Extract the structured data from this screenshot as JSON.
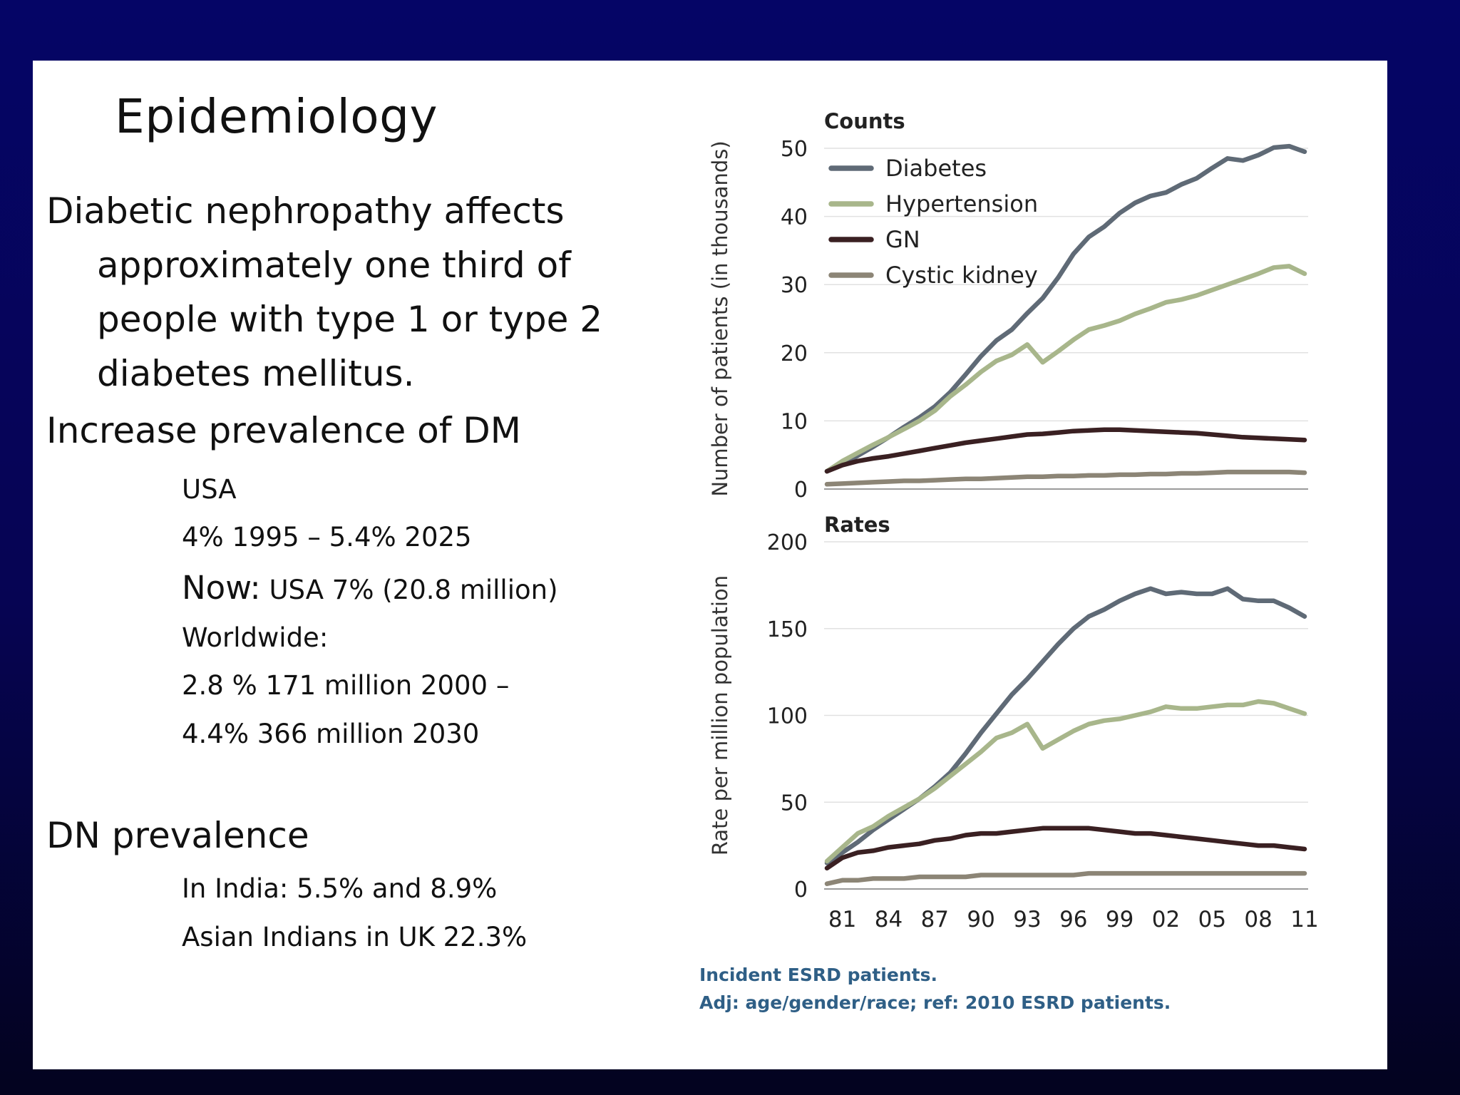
{
  "slide": {
    "title": "Epidemiology",
    "para_line1": "Diabetic nephropathy affects",
    "para_line2": "approximately one third of",
    "para_line3": "people with type 1 or type 2",
    "para_line4": "diabetes mellitus.",
    "heading_dm": "Increase prevalence of DM",
    "usa": "USA",
    "usa_trend": "4% 1995 – 5.4% 2025",
    "now_word": "Now:",
    "now_rest": " USA 7% (20.8 million)",
    "worldwide": "Worldwide:",
    "worldwide_line1": "2.8 % 171 million 2000 –",
    "worldwide_line2": " 4.4% 366 million 2030",
    "heading_dn": "DN prevalence",
    "india": "In India: 5.5% and 8.9%",
    "uk": "Asian Indians in UK 22.3%"
  },
  "captions": {
    "line1": "Incident ESRD patients.",
    "line2": "Adj: age/gender/race; ref: 2010 ESRD patients."
  },
  "colors": {
    "Diabetes": "#5f6a76",
    "Hypertension": "#a8b68b",
    "GN": "#3a2022",
    "Cystic kidney": "#8c8576"
  },
  "chart_data": [
    {
      "type": "line",
      "title": "Counts",
      "ylabel": "Number of patients (in thousands)",
      "xlabel": "",
      "ylim": [
        0,
        50
      ],
      "yticks": [
        0,
        10,
        20,
        30,
        40,
        50
      ],
      "grid": true,
      "legend": "top-left",
      "x": [
        1980,
        1981,
        1982,
        1983,
        1984,
        1985,
        1986,
        1987,
        1988,
        1989,
        1990,
        1991,
        1992,
        1993,
        1994,
        1995,
        1996,
        1997,
        1998,
        1999,
        2000,
        2001,
        2002,
        2003,
        2004,
        2005,
        2006,
        2007,
        2008,
        2009,
        2010,
        2011
      ],
      "series": [
        {
          "name": "Diabetes",
          "values": [
            2.6,
            3.7,
            4.9,
            6.2,
            7.6,
            9.1,
            10.5,
            12.1,
            14.2,
            16.8,
            19.5,
            21.8,
            23.4,
            25.8,
            28.0,
            31.0,
            34.5,
            37.0,
            38.5,
            40.5,
            42.0,
            43.0,
            43.5,
            44.7,
            45.6,
            47.1,
            48.5,
            48.2,
            49.0,
            50.1,
            50.3,
            49.5
          ]
        },
        {
          "name": "Hypertension",
          "values": [
            2.6,
            4.1,
            5.3,
            6.5,
            7.6,
            8.8,
            10.0,
            11.5,
            13.6,
            15.3,
            17.2,
            18.8,
            19.7,
            21.2,
            18.6,
            20.2,
            21.9,
            23.4,
            24.0,
            24.7,
            25.7,
            26.5,
            27.4,
            27.8,
            28.4,
            29.2,
            30.0,
            30.8,
            31.6,
            32.5,
            32.7,
            31.6
          ]
        },
        {
          "name": "GN",
          "values": [
            2.6,
            3.5,
            4.1,
            4.5,
            4.8,
            5.2,
            5.6,
            6.0,
            6.4,
            6.8,
            7.1,
            7.4,
            7.7,
            8.0,
            8.1,
            8.3,
            8.5,
            8.6,
            8.7,
            8.7,
            8.6,
            8.5,
            8.4,
            8.3,
            8.2,
            8.0,
            7.8,
            7.6,
            7.5,
            7.4,
            7.3,
            7.2
          ]
        },
        {
          "name": "Cystic kidney",
          "values": [
            0.7,
            0.8,
            0.9,
            1.0,
            1.1,
            1.2,
            1.2,
            1.3,
            1.4,
            1.5,
            1.5,
            1.6,
            1.7,
            1.8,
            1.8,
            1.9,
            1.9,
            2.0,
            2.0,
            2.1,
            2.1,
            2.2,
            2.2,
            2.3,
            2.3,
            2.4,
            2.5,
            2.5,
            2.5,
            2.5,
            2.5,
            2.4
          ]
        }
      ]
    },
    {
      "type": "line",
      "title": "Rates",
      "ylabel": "Rate per million population",
      "xlabel": "",
      "ylim": [
        0,
        200
      ],
      "yticks": [
        0,
        50,
        100,
        150,
        200
      ],
      "grid": true,
      "xticks": [
        1981,
        1984,
        1987,
        1990,
        1993,
        1996,
        1999,
        2002,
        2005,
        2008,
        2011
      ],
      "xticklabels": [
        "81",
        "84",
        "87",
        "90",
        "93",
        "96",
        "99",
        "02",
        "05",
        "08",
        "11"
      ],
      "x": [
        1980,
        1981,
        1982,
        1983,
        1984,
        1985,
        1986,
        1987,
        1988,
        1989,
        1990,
        1991,
        1992,
        1993,
        1994,
        1995,
        1996,
        1997,
        1998,
        1999,
        2000,
        2001,
        2002,
        2003,
        2004,
        2005,
        2006,
        2007,
        2008,
        2009,
        2010,
        2011
      ],
      "series": [
        {
          "name": "Diabetes",
          "values": [
            15,
            21,
            27,
            34,
            40,
            46,
            52,
            59,
            67,
            78,
            90,
            101,
            112,
            121,
            131,
            141,
            150,
            157,
            161,
            166,
            170,
            173,
            170,
            171,
            170,
            170,
            173,
            167,
            166,
            166,
            162,
            157
          ]
        },
        {
          "name": "Hypertension",
          "values": [
            16,
            24,
            32,
            36,
            42,
            47,
            52,
            58,
            65,
            72,
            79,
            87,
            90,
            95,
            81,
            86,
            91,
            95,
            97,
            98,
            100,
            102,
            105,
            104,
            104,
            105,
            106,
            106,
            108,
            107,
            104,
            101
          ]
        },
        {
          "name": "GN",
          "values": [
            12,
            18,
            21,
            22,
            24,
            25,
            26,
            28,
            29,
            31,
            32,
            32,
            33,
            34,
            35,
            35,
            35,
            35,
            34,
            33,
            32,
            32,
            31,
            30,
            29,
            28,
            27,
            26,
            25,
            25,
            24,
            23
          ]
        },
        {
          "name": "Cystic kidney",
          "values": [
            3,
            5,
            5,
            6,
            6,
            6,
            7,
            7,
            7,
            7,
            8,
            8,
            8,
            8,
            8,
            8,
            8,
            9,
            9,
            9,
            9,
            9,
            9,
            9,
            9,
            9,
            9,
            9,
            9,
            9,
            9,
            9
          ]
        }
      ]
    }
  ]
}
